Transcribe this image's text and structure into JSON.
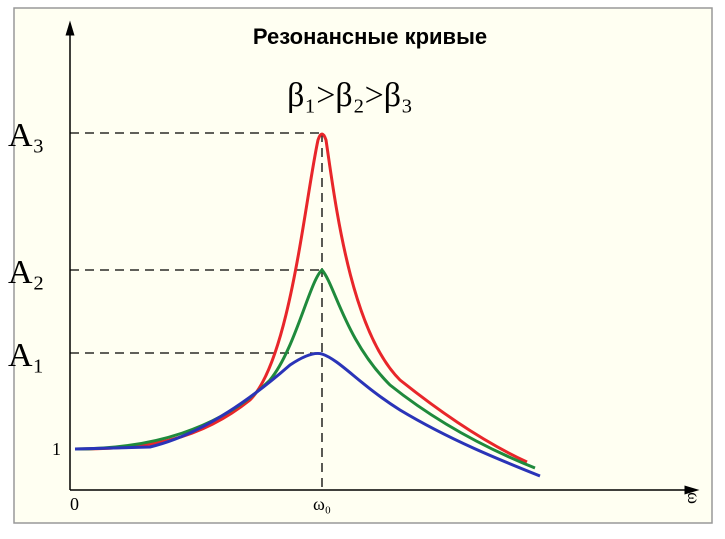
{
  "title": "Резонансные кривые",
  "condition": "β₁>β₂>β₃",
  "y_labels": {
    "a3": "A₃",
    "a2": "A₂",
    "a1": "A₁",
    "one": "1"
  },
  "x_labels": {
    "origin": "0",
    "omega0": "ω₀",
    "omega": "ω"
  }
}
